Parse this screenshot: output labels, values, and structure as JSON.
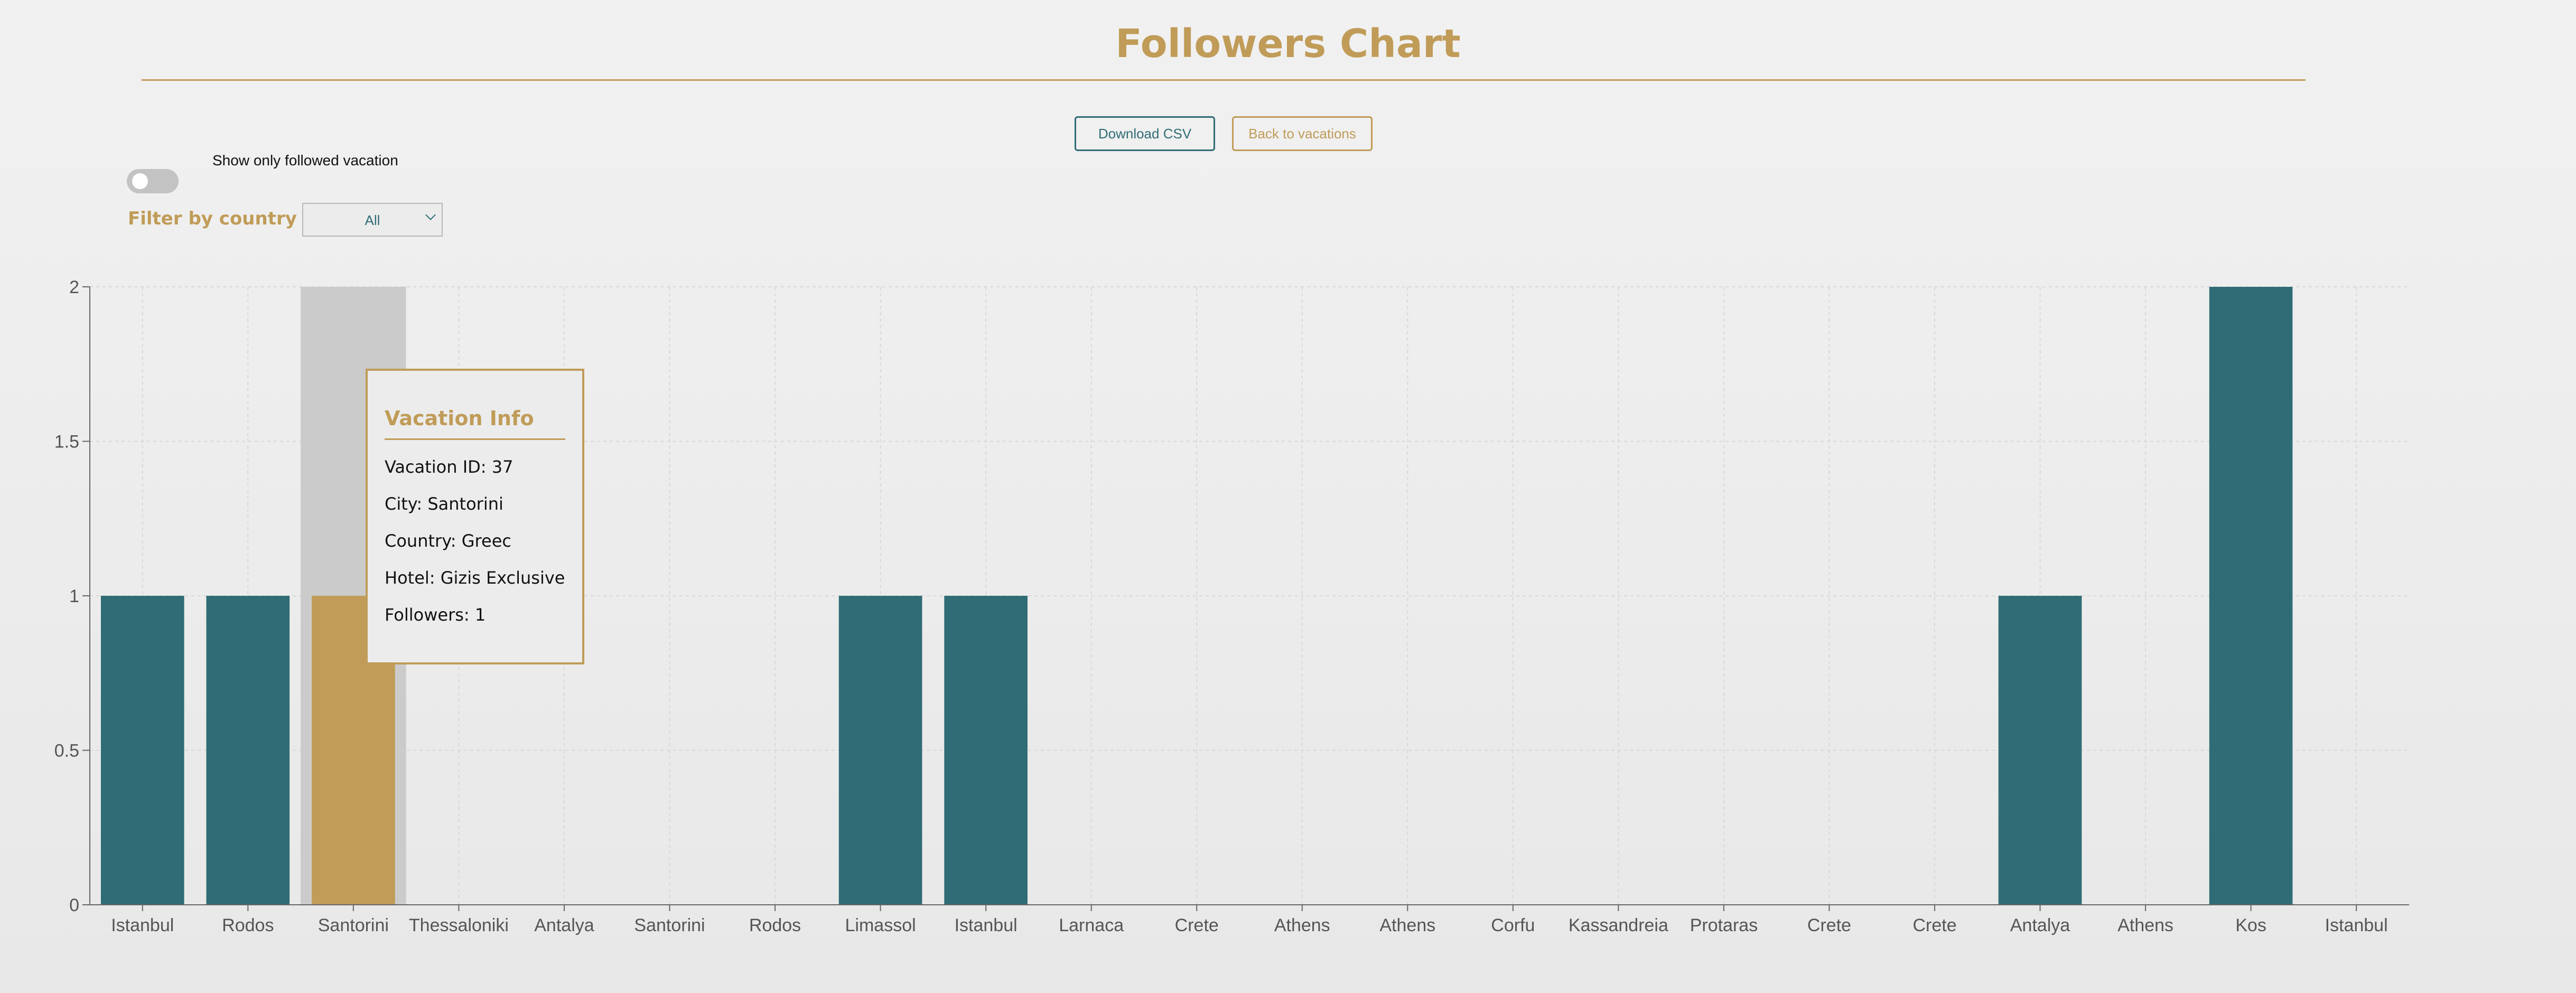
{
  "page": {
    "title": "Followers Chart",
    "download_label": "Download CSV",
    "back_label": "Back to vacations",
    "toggle_label": "Show only followed vacation",
    "toggle_on": false,
    "filter_label": "Filter by country",
    "filter_value": "All"
  },
  "colors": {
    "accent": "#c09c58",
    "bar": "#306c76",
    "highlight_bar": "#c09c58",
    "hover_band": "#cbcbcb"
  },
  "tooltip": {
    "heading": "Vacation Info",
    "vacation_id": "Vacation ID: 37",
    "city": "City: Santorini",
    "country": "Country: Greec",
    "hotel": "Hotel: Gizis Exclusive",
    "followers": "Followers: 1"
  },
  "chart_data": {
    "type": "bar",
    "categories": [
      "Istanbul",
      "Rodos",
      "Santorini",
      "Thessaloniki",
      "Antalya",
      "Santorini",
      "Rodos",
      "Limassol",
      "Istanbul",
      "Larnaca",
      "Crete",
      "Athens",
      "Athens",
      "Corfu",
      "Kassandreia",
      "Protaras",
      "Crete",
      "Crete",
      "Antalya",
      "Athens",
      "Kos",
      "Istanbul"
    ],
    "values": [
      1,
      1,
      1,
      0,
      0,
      0,
      0,
      1,
      1,
      0,
      0,
      0,
      0,
      0,
      0,
      0,
      0,
      0,
      1,
      0,
      2,
      0
    ],
    "highlighted_index": 2,
    "ylim": [
      0,
      2
    ],
    "yticks": [
      0,
      0.5,
      1,
      1.5,
      2
    ],
    "ytick_labels": [
      "0",
      "0.5",
      "1",
      "1.5",
      "2"
    ],
    "grid": true,
    "title": "",
    "xlabel": "",
    "ylabel": ""
  }
}
